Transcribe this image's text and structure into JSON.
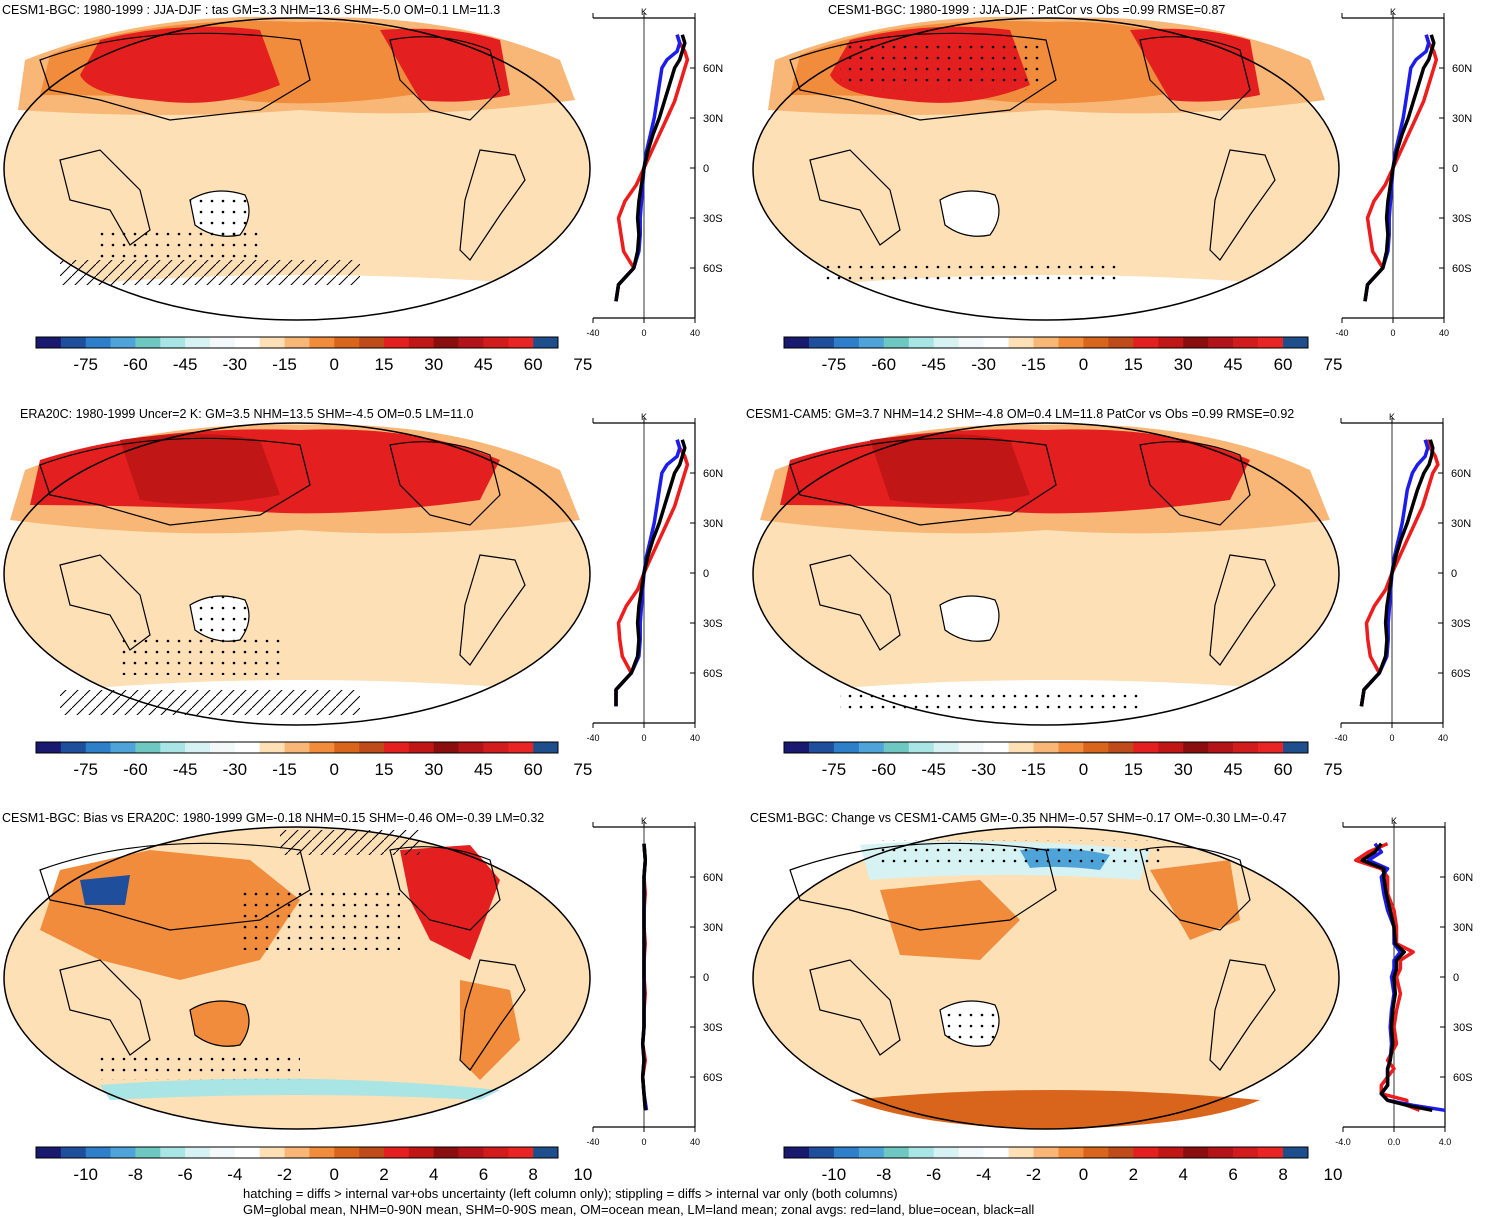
{
  "footer": {
    "line1": "hatching = diffs > internal var+obs uncertainty (left column only); stippling = diffs > internal var only (both columns)",
    "line2": "GM=global mean, NHM=0-90N mean, SHM=0-90S mean, OM=ocean mean, LM=land mean; zonal avgs: red=land, blue=ocean, black=all"
  },
  "colors": {
    "ocean_fill": "#fde0b6",
    "land_edge": "#000000",
    "zonal_land": "#ee1c1c",
    "zonal_ocean": "#1c1cee",
    "zonal_all": "#000000"
  },
  "colorbar": {
    "temp_labels": [
      "-75",
      "-60",
      "-45",
      "-30",
      "-15",
      "0",
      "15",
      "30",
      "45",
      "60",
      "75"
    ],
    "diff_labels": [
      "-10",
      "-8",
      "-6",
      "-4",
      "-2",
      "0",
      "2",
      "4",
      "6",
      "8",
      "10"
    ],
    "swatches": [
      "#191970",
      "#1f4e9c",
      "#2c7fc8",
      "#4ea3d8",
      "#6ec7c1",
      "#a9e5e5",
      "#d7f2f2",
      "#f3f9f9",
      "#ffffff",
      "#fde0b6",
      "#f8b777",
      "#f08c3c",
      "#d9651d",
      "#bf4a1a",
      "#e41f1f",
      "#c11616",
      "#8b0e0e",
      "#b3141a",
      "#d01c1c",
      "#e82424",
      "#1f4e8c"
    ]
  },
  "panels": [
    {
      "id": "cesm1-bgc-tas",
      "title": "CESM1-BGC: 1980-1999 : JJA-DJF : tas GM=3.3 NHM=13.6 SHM=-5.0 OM=0.1 LM=11.3",
      "colorbar": "temp",
      "zonal_ticks_x": [
        "-40",
        "0",
        "40"
      ],
      "zonal_ticks_y": [
        "60N",
        "30N",
        "0",
        "30S",
        "60S"
      ],
      "zonal_unit": "K"
    },
    {
      "id": "cesm1-bgc-patcor",
      "title": "CESM1-BGC: 1980-1999 : JJA-DJF : PatCor vs Obs =0.99 RMSE=0.87",
      "colorbar": "temp",
      "zonal_ticks_x": [
        "-40",
        "0",
        "40"
      ],
      "zonal_ticks_y": [
        "60N",
        "30N",
        "0",
        "30S",
        "60S"
      ],
      "zonal_unit": "K"
    },
    {
      "id": "era20c",
      "title": "ERA20C: 1980-1999 Uncer=2 K: GM=3.5 NHM=13.5 SHM=-4.5 OM=0.5 LM=11.0",
      "colorbar": "temp",
      "zonal_ticks_x": [
        "-40",
        "0",
        "40"
      ],
      "zonal_ticks_y": [
        "60N",
        "30N",
        "0",
        "30S",
        "60S"
      ],
      "zonal_unit": "K"
    },
    {
      "id": "cesm1-cam5",
      "title": "CESM1-CAM5: GM=3.7 NHM=14.2 SHM=-4.8 OM=0.4 LM=11.8 PatCor vs Obs =0.99 RMSE=0.92",
      "colorbar": "temp",
      "zonal_ticks_x": [
        "-40",
        "0",
        "40"
      ],
      "zonal_ticks_y": [
        "60N",
        "30N",
        "0",
        "30S",
        "60S"
      ],
      "zonal_unit": "K"
    },
    {
      "id": "bias-vs-era20c",
      "title": "CESM1-BGC: Bias vs ERA20C: 1980-1999 GM=-0.18 NHM=0.15 SHM=-0.46 OM=-0.39 LM=0.32",
      "colorbar": "diff",
      "zonal_ticks_x": [
        "-40",
        "0",
        "40"
      ],
      "zonal_ticks_y": [
        "60N",
        "30N",
        "0",
        "30S",
        "60S"
      ],
      "zonal_unit": "K"
    },
    {
      "id": "change-vs-cam5",
      "title": "CESM1-BGC: Change vs CESM1-CAM5 GM=-0.35 NHM=-0.57 SHM=-0.17 OM=-0.30 LM=-0.47",
      "colorbar": "diff",
      "zonal_ticks_x": [
        "-4.0",
        "0.0",
        "4.0"
      ],
      "zonal_ticks_y": [
        "60N",
        "30N",
        "0",
        "30S",
        "60S"
      ],
      "zonal_unit": "K"
    }
  ],
  "chart_data": [
    {
      "type": "line",
      "panel": "cesm1-bgc-tas",
      "xlabel": "",
      "ylabel": "",
      "xlim": [
        -40,
        40
      ],
      "ylim": [
        -90,
        90
      ],
      "series": [
        {
          "color": "#ee1c1c",
          "y": [
            -80,
            -70,
            -60,
            -50,
            -40,
            -30,
            -20,
            -10,
            0,
            10,
            20,
            30,
            40,
            50,
            60,
            65,
            70,
            75,
            80
          ],
          "x": [
            -22,
            -20,
            -8,
            -16,
            -18,
            -20,
            -15,
            -6,
            0,
            6,
            12,
            18,
            24,
            28,
            32,
            34,
            32,
            28,
            26
          ]
        },
        {
          "color": "#1c1cee",
          "y": [
            -80,
            -70,
            -60,
            -50,
            -40,
            -30,
            -20,
            -10,
            0,
            10,
            20,
            30,
            40,
            50,
            60,
            65,
            70,
            75,
            80
          ],
          "x": [
            -22,
            -20,
            -8,
            -4,
            -3,
            -3,
            -2,
            -1,
            0,
            2,
            5,
            8,
            10,
            12,
            14,
            18,
            26,
            28,
            26
          ]
        },
        {
          "color": "#000000",
          "y": [
            -80,
            -70,
            -60,
            -50,
            -40,
            -30,
            -20,
            -10,
            0,
            10,
            20,
            30,
            40,
            50,
            60,
            65,
            70,
            75,
            80
          ],
          "x": [
            -22,
            -20,
            -8,
            -5,
            -4,
            -5,
            -4,
            -2,
            0,
            3,
            7,
            12,
            16,
            20,
            24,
            28,
            30,
            32,
            30
          ]
        }
      ]
    },
    {
      "type": "line",
      "panel": "cesm1-bgc-patcor",
      "xlabel": "",
      "ylabel": "",
      "xlim": [
        -40,
        40
      ],
      "ylim": [
        -90,
        90
      ],
      "series": [
        {
          "color": "#ee1c1c",
          "y": [
            -80,
            -70,
            -60,
            -50,
            -40,
            -30,
            -20,
            -10,
            0,
            10,
            20,
            30,
            40,
            50,
            60,
            65,
            70,
            75,
            80
          ],
          "x": [
            -22,
            -20,
            -8,
            -16,
            -18,
            -20,
            -15,
            -6,
            0,
            6,
            12,
            18,
            24,
            28,
            32,
            34,
            32,
            28,
            26
          ]
        },
        {
          "color": "#1c1cee",
          "y": [
            -80,
            -70,
            -60,
            -50,
            -40,
            -30,
            -20,
            -10,
            0,
            10,
            20,
            30,
            40,
            50,
            60,
            65,
            70,
            75,
            80
          ],
          "x": [
            -22,
            -20,
            -8,
            -4,
            -3,
            -3,
            -2,
            -1,
            0,
            2,
            5,
            8,
            10,
            12,
            14,
            18,
            26,
            28,
            26
          ]
        },
        {
          "color": "#000000",
          "y": [
            -80,
            -70,
            -60,
            -50,
            -40,
            -30,
            -20,
            -10,
            0,
            10,
            20,
            30,
            40,
            50,
            60,
            65,
            70,
            75,
            80
          ],
          "x": [
            -22,
            -20,
            -8,
            -5,
            -4,
            -5,
            -4,
            -2,
            0,
            3,
            7,
            12,
            16,
            20,
            24,
            28,
            30,
            32,
            30
          ]
        }
      ]
    },
    {
      "type": "line",
      "panel": "era20c",
      "xlabel": "",
      "ylabel": "",
      "xlim": [
        -40,
        40
      ],
      "ylim": [
        -90,
        90
      ],
      "series": [
        {
          "color": "#ee1c1c",
          "y": [
            -80,
            -70,
            -60,
            -50,
            -40,
            -30,
            -20,
            -10,
            0,
            10,
            20,
            30,
            40,
            50,
            60,
            65,
            70,
            75,
            80
          ],
          "x": [
            -22,
            -22,
            -10,
            -17,
            -19,
            -20,
            -14,
            -5,
            0,
            6,
            12,
            18,
            24,
            28,
            32,
            34,
            32,
            28,
            26
          ]
        },
        {
          "color": "#1c1cee",
          "y": [
            -80,
            -70,
            -60,
            -50,
            -40,
            -30,
            -20,
            -10,
            0,
            10,
            20,
            30,
            40,
            50,
            60,
            65,
            70,
            75,
            80
          ],
          "x": [
            -22,
            -22,
            -10,
            -4,
            -3,
            -3,
            -2,
            -1,
            0,
            2,
            5,
            8,
            10,
            12,
            14,
            18,
            26,
            28,
            26
          ]
        },
        {
          "color": "#000000",
          "y": [
            -80,
            -70,
            -60,
            -50,
            -40,
            -30,
            -20,
            -10,
            0,
            10,
            20,
            30,
            40,
            50,
            60,
            65,
            70,
            75,
            80
          ],
          "x": [
            -22,
            -22,
            -10,
            -5,
            -4,
            -5,
            -4,
            -2,
            0,
            3,
            7,
            12,
            16,
            20,
            24,
            28,
            30,
            32,
            30
          ]
        }
      ]
    },
    {
      "type": "line",
      "panel": "cesm1-cam5",
      "xlabel": "",
      "ylabel": "",
      "xlim": [
        -40,
        40
      ],
      "ylim": [
        -90,
        90
      ],
      "series": [
        {
          "color": "#ee1c1c",
          "y": [
            -80,
            -70,
            -60,
            -50,
            -40,
            -30,
            -20,
            -10,
            0,
            10,
            20,
            30,
            40,
            50,
            60,
            65,
            70,
            75,
            80
          ],
          "x": [
            -24,
            -22,
            -10,
            -17,
            -19,
            -20,
            -14,
            -5,
            0,
            6,
            12,
            18,
            24,
            28,
            32,
            36,
            34,
            30,
            28
          ]
        },
        {
          "color": "#1c1cee",
          "y": [
            -80,
            -70,
            -60,
            -50,
            -40,
            -30,
            -20,
            -10,
            0,
            10,
            20,
            30,
            40,
            50,
            60,
            65,
            70,
            75,
            80
          ],
          "x": [
            -24,
            -22,
            -10,
            -4,
            -3,
            -3,
            -2,
            -1,
            0,
            2,
            5,
            8,
            10,
            12,
            16,
            20,
            26,
            28,
            26
          ]
        },
        {
          "color": "#000000",
          "y": [
            -80,
            -70,
            -60,
            -50,
            -40,
            -30,
            -20,
            -10,
            0,
            10,
            20,
            30,
            40,
            50,
            60,
            65,
            70,
            75,
            80
          ],
          "x": [
            -24,
            -22,
            -10,
            -5,
            -4,
            -5,
            -4,
            -2,
            0,
            3,
            7,
            12,
            16,
            20,
            25,
            29,
            31,
            32,
            30
          ]
        }
      ]
    },
    {
      "type": "line",
      "panel": "bias-vs-era20c",
      "xlabel": "",
      "ylabel": "",
      "xlim": [
        -40,
        40
      ],
      "ylim": [
        -90,
        90
      ],
      "series": [
        {
          "color": "#ee1c1c",
          "y": [
            -80,
            -70,
            -60,
            -50,
            -40,
            -30,
            -20,
            -10,
            0,
            10,
            20,
            30,
            40,
            50,
            60,
            70,
            80
          ],
          "x": [
            1,
            0,
            -1,
            1,
            -1,
            0,
            0,
            1,
            0,
            0,
            1,
            0,
            0,
            1,
            0,
            1,
            0
          ]
        },
        {
          "color": "#1c1cee",
          "y": [
            -80,
            -70,
            -60,
            -50,
            -40,
            -30,
            -20,
            -10,
            0,
            10,
            20,
            30,
            40,
            50,
            60,
            70,
            80
          ],
          "x": [
            2,
            0,
            -1,
            0,
            -1,
            0,
            0,
            0,
            0,
            0,
            0,
            0,
            0,
            0,
            0,
            1,
            0
          ]
        },
        {
          "color": "#000000",
          "y": [
            -80,
            -70,
            -60,
            -50,
            -40,
            -30,
            -20,
            -10,
            0,
            10,
            20,
            30,
            40,
            50,
            60,
            70,
            80
          ],
          "x": [
            1,
            0,
            -1,
            0,
            -1,
            0,
            0,
            0,
            0,
            0,
            0,
            0,
            0,
            0,
            0,
            1,
            0
          ]
        }
      ]
    },
    {
      "type": "line",
      "panel": "change-vs-cam5",
      "xlabel": "",
      "ylabel": "",
      "xlim": [
        -4,
        4
      ],
      "ylim": [
        -90,
        90
      ],
      "series": [
        {
          "color": "#ee1c1c",
          "y": [
            -80,
            -77,
            -74,
            -70,
            -65,
            -60,
            -55,
            -50,
            -40,
            -30,
            -20,
            -10,
            0,
            5,
            10,
            15,
            20,
            30,
            40,
            50,
            60,
            65,
            70,
            75,
            80
          ],
          "x": [
            2,
            1,
            1,
            -1,
            -1,
            -0.5,
            0,
            -0.5,
            0.2,
            0,
            0.2,
            0.5,
            0.2,
            0.5,
            0.5,
            1.5,
            0.2,
            0.2,
            0,
            -0.5,
            -0.5,
            -1,
            -3,
            -2,
            -0.5
          ]
        },
        {
          "color": "#1c1cee",
          "y": [
            -80,
            -77,
            -74,
            -70,
            -65,
            -60,
            -55,
            -50,
            -40,
            -30,
            -20,
            -10,
            0,
            5,
            10,
            15,
            20,
            30,
            40,
            50,
            60,
            65,
            70,
            75,
            80
          ],
          "x": [
            4,
            1.5,
            -0.5,
            -1,
            -0.5,
            -0.5,
            -0.5,
            -0.3,
            -0.2,
            -0.3,
            -0.2,
            0,
            -0.2,
            0,
            0,
            0.5,
            0,
            0,
            -0.5,
            -0.8,
            -1,
            -0.5,
            -2,
            -1,
            -1.5
          ]
        },
        {
          "color": "#000000",
          "y": [
            -80,
            -77,
            -74,
            -70,
            -65,
            -60,
            -55,
            -50,
            -40,
            -30,
            -20,
            -10,
            0,
            5,
            10,
            15,
            20,
            30,
            40,
            50,
            60,
            65,
            70,
            75,
            80
          ],
          "x": [
            3,
            1,
            -0.5,
            -1,
            -0.5,
            -0.5,
            -0.5,
            -0.3,
            -0.1,
            -0.2,
            -0.1,
            0.1,
            0,
            0.2,
            0.2,
            0.8,
            0.1,
            0,
            -0.3,
            -0.6,
            -0.8,
            -0.8,
            -2.5,
            -1.5,
            -1
          ]
        }
      ]
    }
  ]
}
